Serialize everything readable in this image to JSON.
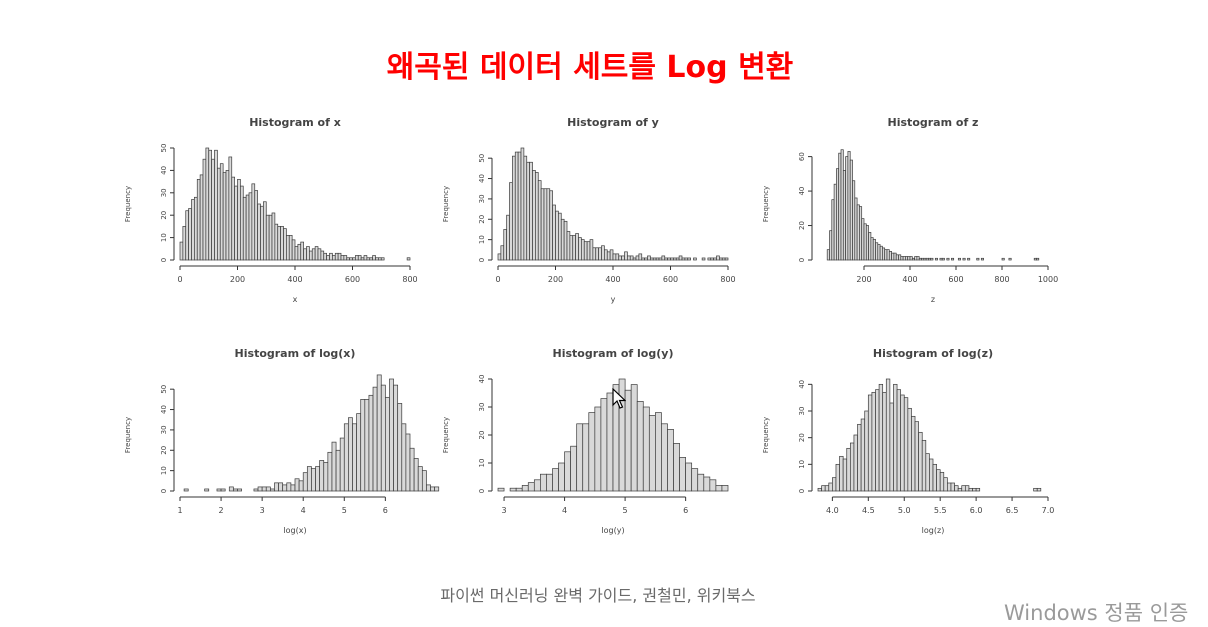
{
  "slide": {
    "title": "왜곡된 데이터 세트를 Log 변환",
    "caption": "파이썬 머신러닝 완벽 가이드, 권철민, 위키북스",
    "watermark": "Windows 정품 인증"
  },
  "chart_data": [
    {
      "type": "bar",
      "title": "Histogram of x",
      "xlabel": "x",
      "ylabel": "Frequency",
      "xlim": [
        0,
        800
      ],
      "ylim": [
        0,
        50
      ],
      "xticks": [
        "0",
        "200",
        "400",
        "600",
        "800"
      ],
      "yticks": [
        "0",
        "10",
        "20",
        "30",
        "40",
        "50"
      ],
      "bin_start": 0,
      "bin_width": 10,
      "values": [
        8,
        15,
        22,
        23,
        27,
        28,
        36,
        38,
        45,
        50,
        49,
        45,
        49,
        41,
        43,
        39,
        40,
        46,
        37,
        33,
        36,
        33,
        28,
        29,
        30,
        34,
        31,
        25,
        24,
        26,
        20,
        20,
        21,
        16,
        15,
        15,
        14,
        11,
        11,
        9,
        6,
        7,
        8,
        5,
        6,
        4,
        5,
        6,
        5,
        4,
        3,
        2,
        3,
        2,
        3,
        3,
        2,
        2,
        1,
        1,
        1,
        2,
        2,
        1,
        2,
        1,
        1,
        2,
        1,
        1,
        1,
        0,
        0,
        0,
        0,
        0,
        0,
        0,
        0,
        1
      ]
    },
    {
      "type": "bar",
      "title": "Histogram of y",
      "xlabel": "y",
      "ylabel": "Frequency",
      "xlim": [
        0,
        800
      ],
      "ylim": [
        0,
        55
      ],
      "xticks": [
        "0",
        "200",
        "400",
        "600",
        "800"
      ],
      "yticks": [
        "0",
        "10",
        "20",
        "30",
        "40",
        "50"
      ],
      "bin_start": 0,
      "bin_width": 10,
      "values": [
        3,
        7,
        15,
        22,
        38,
        51,
        53,
        53,
        55,
        51,
        48,
        48,
        44,
        43,
        39,
        35,
        35,
        35,
        34,
        27,
        24,
        23,
        20,
        19,
        14,
        12,
        12,
        13,
        11,
        10,
        9,
        9,
        10,
        6,
        6,
        6,
        7,
        5,
        4,
        5,
        3,
        3,
        2,
        2,
        4,
        2,
        2,
        1,
        2,
        3,
        1,
        1,
        2,
        1,
        1,
        1,
        1,
        2,
        1,
        1,
        1,
        1,
        1,
        2,
        1,
        1,
        1,
        0,
        1,
        0,
        0,
        1,
        0,
        1,
        1,
        1,
        2,
        1,
        1,
        1
      ]
    },
    {
      "type": "bar",
      "title": "Histogram of z",
      "xlabel": "z",
      "ylabel": "Frequency",
      "xlim": [
        0,
        1000
      ],
      "ylim": [
        0,
        65
      ],
      "xticks": [
        "200",
        "400",
        "600",
        "800",
        "1000"
      ],
      "yticks": [
        "0",
        "20",
        "40",
        "60"
      ],
      "bin_start": 40,
      "bin_width": 10,
      "values": [
        6,
        17,
        35,
        44,
        53,
        62,
        64,
        52,
        60,
        63,
        58,
        46,
        36,
        32,
        31,
        24,
        21,
        20,
        16,
        13,
        12,
        10,
        9,
        8,
        7,
        6,
        6,
        5,
        4,
        4,
        3,
        3,
        2,
        2,
        2,
        2,
        2,
        1,
        2,
        2,
        1,
        1,
        1,
        1,
        1,
        1,
        0,
        1,
        0,
        1,
        1,
        0,
        1,
        0,
        1,
        0,
        0,
        1,
        0,
        1,
        0,
        1,
        0,
        0,
        0,
        1,
        0,
        1,
        0,
        0,
        0,
        0,
        0,
        0,
        0,
        0,
        1,
        0,
        0,
        1,
        0,
        0,
        0,
        0,
        0,
        0,
        0,
        0,
        0,
        0,
        1,
        1
      ]
    },
    {
      "type": "bar",
      "title": "Histogram of log(x)",
      "xlabel": "log(x)",
      "ylabel": "Frequency",
      "xlim": [
        1,
        6.6
      ],
      "ylim": [
        0,
        55
      ],
      "xticks": [
        "1",
        "2",
        "3",
        "4",
        "5",
        "6"
      ],
      "yticks": [
        "0",
        "10",
        "20",
        "30",
        "40",
        "50"
      ],
      "bin_start": 1.1,
      "bin_width": 0.1,
      "values": [
        1,
        0,
        0,
        0,
        0,
        1,
        0,
        0,
        1,
        1,
        0,
        2,
        1,
        1,
        0,
        0,
        0,
        1,
        2,
        2,
        2,
        1,
        4,
        4,
        3,
        4,
        3,
        6,
        5,
        9,
        12,
        11,
        12,
        15,
        14,
        19,
        24,
        20,
        26,
        33,
        36,
        33,
        38,
        45,
        45,
        47,
        51,
        57,
        52,
        46,
        55,
        52,
        43,
        33,
        28,
        21,
        16,
        12,
        10,
        3,
        2,
        2
      ]
    },
    {
      "type": "bar",
      "title": "Histogram of log(y)",
      "xlabel": "log(y)",
      "ylabel": "Frequency",
      "xlim": [
        2.9,
        6.7
      ],
      "ylim": [
        0,
        40
      ],
      "xticks": [
        "3",
        "4",
        "5",
        "6"
      ],
      "yticks": [
        "0",
        "10",
        "20",
        "30",
        "40"
      ],
      "bin_start": 2.9,
      "bin_width": 0.1,
      "values": [
        1,
        0,
        1,
        1,
        2,
        3,
        4,
        6,
        6,
        8,
        10,
        14,
        16,
        24,
        24,
        28,
        30,
        33,
        35,
        38,
        40,
        36,
        38,
        32,
        30,
        27,
        28,
        24,
        22,
        17,
        12,
        10,
        8,
        6,
        5,
        4,
        2,
        2
      ]
    },
    {
      "type": "bar",
      "title": "Histogram of log(z)",
      "xlabel": "log(z)",
      "ylabel": "Frequency",
      "xlim": [
        3.8,
        7
      ],
      "ylim": [
        0,
        42
      ],
      "xticks": [
        "4.0",
        "4.5",
        "5.0",
        "5.5",
        "6.0",
        "6.5",
        "7.0"
      ],
      "yticks": [
        "0",
        "10",
        "20",
        "30",
        "40"
      ],
      "bin_start": 3.8,
      "bin_width": 0.05,
      "values": [
        1,
        2,
        2,
        3,
        5,
        10,
        13,
        12,
        16,
        18,
        21,
        25,
        27,
        30,
        36,
        37,
        38,
        40,
        37,
        42,
        33,
        40,
        38,
        36,
        35,
        31,
        28,
        26,
        22,
        19,
        14,
        12,
        10,
        8,
        7,
        5,
        3,
        3,
        2,
        1,
        2,
        2,
        1,
        1,
        1,
        0,
        0,
        0,
        0,
        0,
        0,
        0,
        0,
        0,
        0,
        0,
        0,
        0,
        0,
        0,
        1,
        1,
        0,
        0
      ]
    }
  ]
}
